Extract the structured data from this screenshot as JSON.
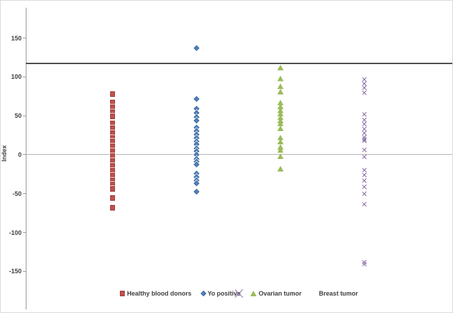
{
  "chart_data": {
    "type": "scatter",
    "title": "",
    "xlabel": "",
    "ylabel": "Index",
    "ylim": [
      -199,
      189
    ],
    "yticks": [
      150,
      100,
      50,
      0,
      -50,
      -100,
      -150
    ],
    "grid": "off",
    "legend_position": "bottom-center",
    "axis_color": "#9a9a9a",
    "text_color": "#3f3f3f",
    "reference_lines": [
      {
        "y": 117,
        "color": "#4d4d4d",
        "width": 2
      },
      {
        "y": 0,
        "color": "#b3b3b3",
        "width": 1
      }
    ],
    "series": [
      {
        "name": "Healthy blood donors",
        "marker": "square",
        "color": "#c0504d",
        "x": 1,
        "values": [
          78,
          67,
          61,
          55,
          49,
          40,
          34,
          28,
          21,
          17,
          11,
          4,
          -2,
          -8,
          -14,
          -21,
          -27,
          -33,
          -39,
          -44,
          -56,
          -68
        ]
      },
      {
        "name": "Yo positive",
        "marker": "diamond",
        "color": "#4f81bd",
        "x": 2,
        "values": [
          137,
          72,
          59,
          54,
          48,
          44,
          35,
          30,
          26,
          21,
          17,
          13,
          8,
          4,
          0,
          -5,
          -9,
          -13,
          -24,
          -29,
          -33,
          -37,
          -48
        ]
      },
      {
        "name": "Ovarian tumor",
        "marker": "triangle",
        "color": "#9bbb59",
        "x": 3,
        "values": [
          112,
          98,
          88,
          81,
          67,
          62,
          57,
          53,
          48,
          44,
          40,
          34,
          22,
          17,
          10,
          6,
          -2,
          -18
        ]
      },
      {
        "name": "Breast tumor",
        "marker": "x",
        "color": "#8064a2",
        "x": 4,
        "values": [
          97,
          91,
          86,
          80,
          52,
          45,
          39,
          33,
          28,
          22,
          20,
          18,
          6,
          -3,
          -20,
          -26,
          -33,
          -41,
          -50,
          -64,
          -138,
          -141
        ]
      }
    ]
  }
}
